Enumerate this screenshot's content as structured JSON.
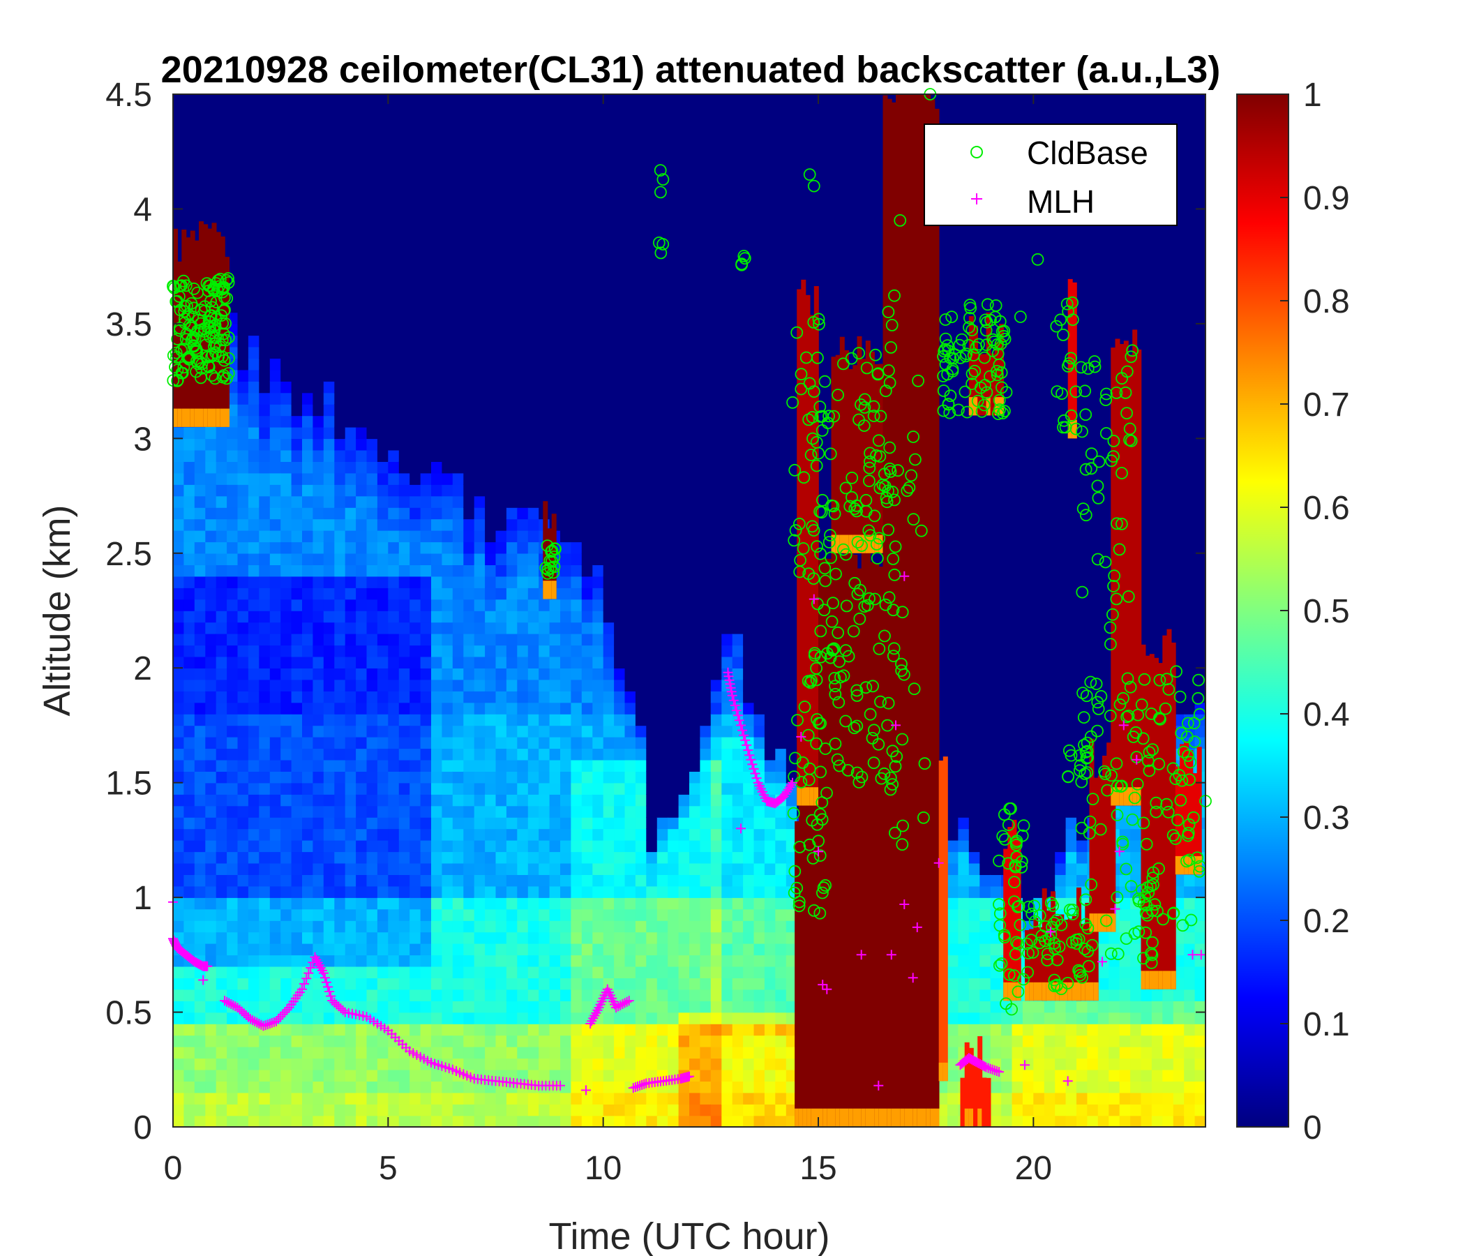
{
  "chart_data": {
    "type": "heatmap",
    "title": "20210928 ceilometer(CL31) attenuated backscatter (a.u.,L3)",
    "xlabel": "Time (UTC hour)",
    "ylabel": "Altitude (km)",
    "xlim": [
      0,
      24
    ],
    "ylim": [
      0,
      4.5
    ],
    "xticks": [
      "0",
      "5",
      "10",
      "15",
      "20"
    ],
    "xtick_values": [
      0,
      5,
      10,
      15,
      20
    ],
    "yticks": [
      "0",
      "0.5",
      "1",
      "1.5",
      "2",
      "2.5",
      "3",
      "3.5",
      "4",
      "4.5"
    ],
    "ytick_values": [
      0,
      0.5,
      1,
      1.5,
      2,
      2.5,
      3,
      3.5,
      4,
      4.5
    ],
    "colorbar": {
      "colormap": "jet",
      "clim": [
        0,
        1
      ],
      "ticks": [
        "0",
        "0.1",
        "0.2",
        "0.3",
        "0.4",
        "0.5",
        "0.6",
        "0.7",
        "0.8",
        "0.9",
        "1"
      ],
      "tick_values": [
        0,
        0.1,
        0.2,
        0.3,
        0.4,
        0.5,
        0.6,
        0.7,
        0.8,
        0.9,
        1
      ]
    },
    "legend": {
      "placement": "top-right",
      "entries": [
        "CldBase",
        "MLH"
      ]
    },
    "colors": {
      "cldbase": "#00ee00",
      "mlh": "#ff00ff",
      "background": "#00008b"
    },
    "regions": [
      {
        "x0": 0.0,
        "x1": 1.3,
        "bot": 3.05,
        "top": 3.85,
        "v": 1.0
      },
      {
        "x0": 8.6,
        "x1": 8.9,
        "bot": 2.3,
        "top": 2.7,
        "v": 1.0
      },
      {
        "x0": 14.45,
        "x1": 15.2,
        "bot": 0.0,
        "top": 1.4,
        "v": 1.0
      },
      {
        "x0": 14.5,
        "x1": 15.0,
        "bot": 1.4,
        "top": 3.6,
        "v": 0.95
      },
      {
        "x0": 15.0,
        "x1": 16.9,
        "bot": 0.0,
        "top": 2.5,
        "v": 1.0
      },
      {
        "x0": 15.3,
        "x1": 16.6,
        "bot": 2.5,
        "top": 3.4,
        "v": 0.98
      },
      {
        "x0": 16.5,
        "x1": 17.8,
        "bot": 0.0,
        "top": 4.5,
        "v": 1.0
      },
      {
        "x0": 17.8,
        "x1": 18.0,
        "bot": 0.2,
        "top": 1.6,
        "v": 0.8
      },
      {
        "x0": 18.3,
        "x1": 19.0,
        "bot": 0.0,
        "top": 0.3,
        "v": 0.85
      },
      {
        "x0": 18.5,
        "x1": 19.3,
        "bot": 3.1,
        "top": 3.45,
        "v": 0.95
      },
      {
        "x0": 19.3,
        "x1": 19.7,
        "bot": 0.55,
        "top": 1.3,
        "v": 0.9
      },
      {
        "x0": 19.8,
        "x1": 21.5,
        "bot": 0.55,
        "top": 0.95,
        "v": 0.95
      },
      {
        "x0": 20.8,
        "x1": 21.0,
        "bot": 3.0,
        "top": 3.6,
        "v": 0.9
      },
      {
        "x0": 21.3,
        "x1": 21.9,
        "bot": 0.85,
        "top": 1.6,
        "v": 0.95
      },
      {
        "x0": 21.8,
        "x1": 22.5,
        "bot": 1.4,
        "top": 3.4,
        "v": 0.95
      },
      {
        "x0": 22.5,
        "x1": 23.3,
        "bot": 0.6,
        "top": 2.1,
        "v": 0.95
      },
      {
        "x0": 23.3,
        "x1": 23.9,
        "bot": 1.1,
        "top": 1.6,
        "v": 0.9
      }
    ],
    "cldbase_clusters": [
      {
        "x": [
          0.0,
          1.3
        ],
        "y": [
          3.25,
          3.7
        ],
        "n": 140
      },
      {
        "x": [
          8.6,
          8.9
        ],
        "y": [
          2.4,
          2.55
        ],
        "n": 14
      },
      {
        "x": [
          11.3,
          11.4
        ],
        "y": [
          3.8,
          4.2
        ],
        "n": 6
      },
      {
        "x": [
          13.2,
          13.3
        ],
        "y": [
          3.75,
          3.8
        ],
        "n": 4
      },
      {
        "x": [
          14.4,
          15.2
        ],
        "y": [
          0.9,
          3.6
        ],
        "n": 90
      },
      {
        "x": [
          15.2,
          16.8
        ],
        "y": [
          1.5,
          3.4
        ],
        "n": 130
      },
      {
        "x": [
          16.6,
          17.5
        ],
        "y": [
          1.2,
          3.7
        ],
        "n": 30
      },
      {
        "x": [
          17.9,
          19.4
        ],
        "y": [
          3.1,
          3.6
        ],
        "n": 80
      },
      {
        "x": [
          19.2,
          19.8
        ],
        "y": [
          0.5,
          1.4
        ],
        "n": 40
      },
      {
        "x": [
          19.8,
          21.3
        ],
        "y": [
          0.6,
          1.0
        ],
        "n": 50
      },
      {
        "x": [
          20.5,
          21.0
        ],
        "y": [
          2.9,
          3.6
        ],
        "n": 18
      },
      {
        "x": [
          20.8,
          21.3
        ],
        "y": [
          1.5,
          1.7
        ],
        "n": 14
      },
      {
        "x": [
          21.1,
          22.3
        ],
        "y": [
          0.75,
          3.4
        ],
        "n": 90
      },
      {
        "x": [
          22.3,
          23.9
        ],
        "y": [
          0.7,
          2.0
        ],
        "n": 90
      }
    ],
    "cldbase_points": [
      {
        "x": 14.8,
        "y": 4.15
      },
      {
        "x": 17.6,
        "y": 4.5
      },
      {
        "x": 16.9,
        "y": 3.95
      },
      {
        "x": 20.1,
        "y": 3.78
      },
      {
        "x": 19.7,
        "y": 3.53
      },
      {
        "x": 24.0,
        "y": 1.42
      },
      {
        "x": 14.9,
        "y": 4.1
      }
    ],
    "mlh_segments": [
      {
        "x": [
          0.0,
          0.1,
          0.3,
          0.5,
          0.7,
          0.8
        ],
        "y": [
          0.82,
          0.78,
          0.75,
          0.72,
          0.7,
          0.7
        ]
      },
      {
        "x": [
          1.2,
          1.5,
          1.8,
          2.1,
          2.4,
          2.7,
          3.0,
          3.3,
          3.5,
          3.7,
          4.0,
          4.5,
          5.0,
          5.5,
          6.0,
          6.5,
          7.0,
          7.5,
          8.0,
          8.5,
          9.0
        ],
        "y": [
          0.55,
          0.52,
          0.47,
          0.44,
          0.46,
          0.52,
          0.6,
          0.74,
          0.67,
          0.55,
          0.5,
          0.48,
          0.42,
          0.33,
          0.28,
          0.25,
          0.21,
          0.2,
          0.19,
          0.18,
          0.18
        ]
      },
      {
        "x": [
          9.7,
          9.9,
          10.1,
          10.3,
          10.6
        ],
        "y": [
          0.45,
          0.52,
          0.6,
          0.52,
          0.55
        ]
      },
      {
        "x": [
          10.7,
          11.0,
          11.4,
          11.8,
          12.0
        ],
        "y": [
          0.17,
          0.19,
          0.2,
          0.21,
          0.22
        ]
      },
      {
        "x": [
          12.9,
          13.0,
          13.2,
          13.4,
          13.6,
          13.8,
          14.0,
          14.2,
          14.4
        ],
        "y": [
          1.98,
          1.88,
          1.75,
          1.62,
          1.5,
          1.42,
          1.41,
          1.44,
          1.5
        ]
      },
      {
        "x": [
          18.3,
          18.5,
          18.7,
          18.9,
          19.2
        ],
        "y": [
          0.27,
          0.3,
          0.28,
          0.26,
          0.24
        ]
      }
    ],
    "mlh_points": [
      {
        "x": 0.0,
        "y": 0.98
      },
      {
        "x": 0.7,
        "y": 0.64
      },
      {
        "x": 9.6,
        "y": 0.16
      },
      {
        "x": 13.2,
        "y": 1.3
      },
      {
        "x": 14.6,
        "y": 1.7
      },
      {
        "x": 14.9,
        "y": 2.3
      },
      {
        "x": 15.0,
        "y": 1.2
      },
      {
        "x": 15.1,
        "y": 0.62
      },
      {
        "x": 15.2,
        "y": 0.6
      },
      {
        "x": 16.0,
        "y": 0.75
      },
      {
        "x": 16.4,
        "y": 0.18
      },
      {
        "x": 16.7,
        "y": 0.75
      },
      {
        "x": 16.8,
        "y": 1.75
      },
      {
        "x": 17.0,
        "y": 2.4
      },
      {
        "x": 17.0,
        "y": 0.97
      },
      {
        "x": 17.3,
        "y": 0.87
      },
      {
        "x": 17.8,
        "y": 1.15
      },
      {
        "x": 17.2,
        "y": 0.65
      },
      {
        "x": 19.8,
        "y": 0.27
      },
      {
        "x": 20.8,
        "y": 0.2
      },
      {
        "x": 21.9,
        "y": 0.95
      },
      {
        "x": 22.0,
        "y": 1.2
      },
      {
        "x": 22.1,
        "y": 1.75
      },
      {
        "x": 22.4,
        "y": 1.6
      },
      {
        "x": 23.7,
        "y": 0.75
      },
      {
        "x": 23.9,
        "y": 0.75
      },
      {
        "x": 20.4,
        "y": 0.85
      },
      {
        "x": 21.6,
        "y": 0.72
      }
    ]
  }
}
